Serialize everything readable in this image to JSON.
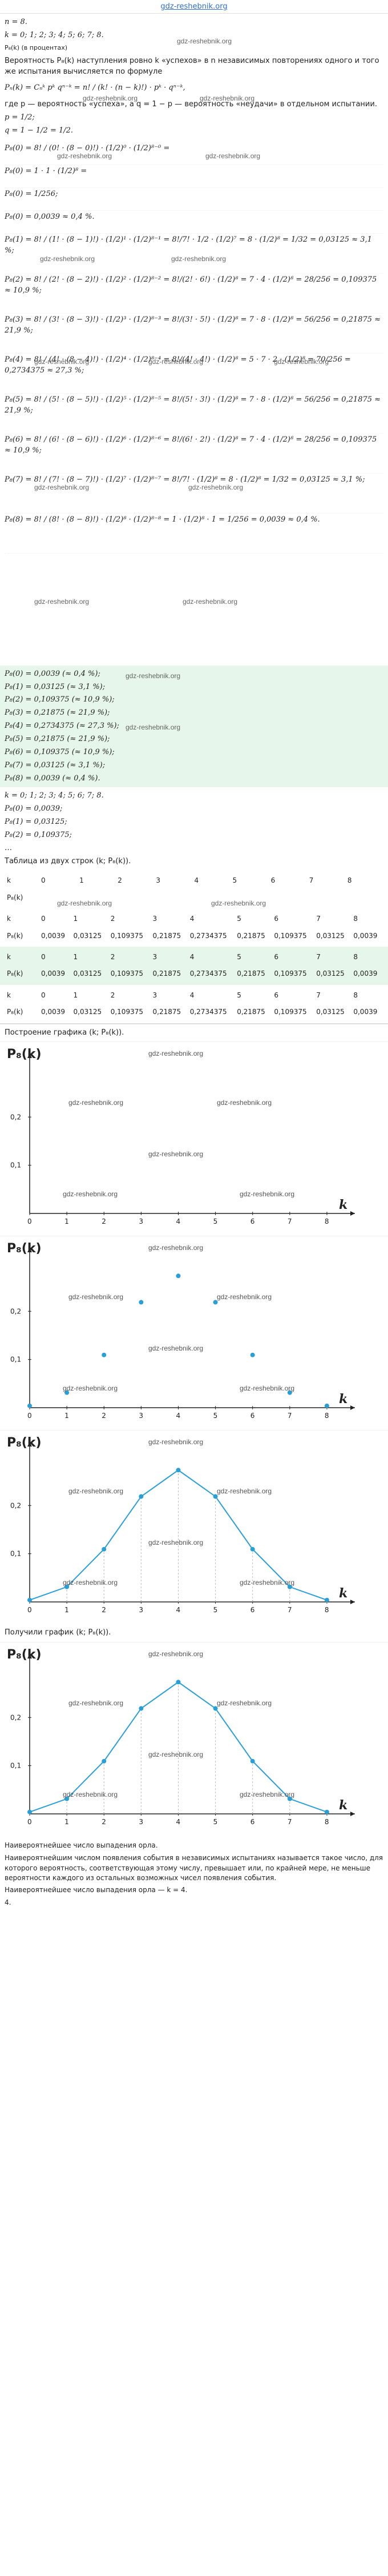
{
  "site": {
    "name": "gdz-reshebnik.org",
    "watermark": "gdz-reshebnik.org"
  },
  "intro": {
    "n_line": "n = 8.",
    "k_line": "k = 0; 1; 2; 3; 4; 5; 6; 7; 8.",
    "pk_caption": "P₈(k) (в процентах)",
    "prob_text": "Вероятность P₈(k) наступления ровно k «успехов» в n независимых повторениях одного и того же испытания вычисляется по формуле",
    "formula": "Pₙ(k) = Cₙᵏ pᵏ qⁿ⁻ᵏ = n! / (k! · (n − k)!) · pᵏ · qⁿ⁻ᵏ,",
    "where_text": "где p — вероятность «успеха», а q = 1 − p — вероятность «неудачи» в отдельном испытании.",
    "p_line": "p = 1/2;",
    "q_line": "q = 1 − 1/2 = 1/2."
  },
  "calcs": [
    "P₈(0) = 8! / (0! · (8 − 0)!) · (1/2)⁰ · (1/2)⁸⁻⁰ =",
    "P₈(0) = 1 · 1 · (1/2)⁸ =",
    "P₈(0) = 1/256;",
    "P₈(0) = 0,0039 ≈ 0,4 %.",
    "P₈(1) = 8! / (1! · (8 − 1)!) · (1/2)¹ · (1/2)⁸⁻¹ = 8!/7! · 1/2 · (1/2)⁷ = 8 · (1/2)⁸ = 1/32 = 0,03125 ≈ 3,1 %;",
    "P₈(2) = 8! / (2! · (8 − 2)!) · (1/2)² · (1/2)⁸⁻² = 8!/(2! · 6!) · (1/2)⁸ = 7 · 4 · (1/2)⁸ = 28/256 = 0,109375 ≈ 10,9 %;",
    "P₈(3) = 8! / (3! · (8 − 3)!) · (1/2)³ · (1/2)⁸⁻³ = 8!/(3! · 5!) · (1/2)⁸ = 7 · 8 · (1/2)⁸ = 56/256 = 0,21875 ≈ 21,9 %;",
    "P₈(4) = 8! / (4! · (8 − 4)!) · (1/2)⁴ · (1/2)⁸⁻⁴ = 8!/(4! · 4!) · (1/2)⁸ = 5 · 7 · 2 · (1/2)⁸ = 70/256 = 0,2734375 ≈ 27,3 %;",
    "P₈(5) = 8! / (5! · (8 − 5)!) · (1/2)⁵ · (1/2)⁸⁻⁵ = 8!/(5! · 3!) · (1/2)⁸ = 7 · 8 · (1/2)⁸ = 56/256 = 0,21875 ≈ 21,9 %;",
    "P₈(6) = 8! / (6! · (8 − 6)!) · (1/2)⁶ · (1/2)⁸⁻⁶ = 8!/(6! · 2!) · (1/2)⁸ = 7 · 4 · (1/2)⁸ = 28/256 = 0,109375 ≈ 10,9 %;",
    "P₈(7) = 8! / (7! · (8 − 7)!) · (1/2)⁷ · (1/2)⁸⁻⁷ = 8!/7! · (1/2)⁸ = 8 · (1/2)⁸ = 1/32 = 0,03125 ≈ 3,1 %;",
    "P₈(8) = 8! / (8! · (8 − 8)!) · (1/2)⁸ · (1/2)⁸⁻⁸ = 1 · (1/2)⁸ · 1 = 1/256 = 0,0039 ≈ 0,4 %."
  ],
  "results": [
    "P₈(0) = 0,0039 (≈ 0,4 %);",
    "P₈(1) = 0,03125 (≈ 3,1 %);",
    "P₈(2) = 0,109375 (≈ 10,9 %);",
    "P₈(3) = 0,21875 (≈ 21,9 %);",
    "P₈(4) = 0,2734375 (≈ 27,3 %);",
    "P₈(5) = 0,21875 (≈ 21,9 %);",
    "P₈(6) = 0,109375 (≈ 10,9 %);",
    "P₈(7) = 0,03125 (≈ 3,1 %);",
    "P₈(8) = 0,0039 (≈ 0,4 %)."
  ],
  "summary": {
    "k_line": "k = 0; 1; 2; 3; 4; 5; 6; 7; 8.",
    "lines": [
      "P₈(0) = 0,0039;",
      "P₈(1) = 0,03125;",
      "P₈(2) = 0,109375;",
      "…"
    ],
    "table_caption": "Таблица из двух строк (k; P₈(k)).",
    "graph_caption": "Построение графика (k; P₈(k)).",
    "got_graph": "Получили график (k; P₈(k))."
  },
  "table": {
    "row_labels": [
      "k",
      "P₈(k)"
    ],
    "k": [
      "0",
      "1",
      "2",
      "3",
      "4",
      "5",
      "6",
      "7",
      "8"
    ],
    "p": [
      "0,0039",
      "0,03125",
      "0,109375",
      "0,21875",
      "0,2734375",
      "0,21875",
      "0,109375",
      "0,03125",
      "0,0039"
    ]
  },
  "chart_data": [
    {
      "type": "scatter",
      "title": "",
      "ylabel": "P₈(k)",
      "xlabel": "k",
      "x_ticks": [
        "0",
        "1",
        "2",
        "3",
        "4",
        "5",
        "6",
        "7",
        "8"
      ],
      "y_ticks": [
        "0,1",
        "0,2"
      ],
      "xlim": [
        0,
        8.6
      ],
      "ylim": [
        0,
        0.32
      ],
      "x": [],
      "y": [],
      "point_color": "#2a9fd6",
      "grid": false
    },
    {
      "type": "scatter",
      "title": "",
      "ylabel": "P₈(k)",
      "xlabel": "k",
      "x_ticks": [
        "0",
        "1",
        "2",
        "3",
        "4",
        "5",
        "6",
        "7",
        "8"
      ],
      "y_ticks": [
        "0,1",
        "0,2"
      ],
      "xlim": [
        0,
        8.6
      ],
      "ylim": [
        0,
        0.32
      ],
      "x": [
        0,
        1,
        2,
        3,
        4,
        5,
        6,
        7,
        8
      ],
      "y": [
        0.0039,
        0.03125,
        0.109375,
        0.21875,
        0.2734375,
        0.21875,
        0.109375,
        0.03125,
        0.0039
      ],
      "point_color": "#2a9fd6",
      "grid": false
    },
    {
      "type": "line",
      "title": "",
      "ylabel": "P₈(k)",
      "xlabel": "k",
      "x_ticks": [
        "0",
        "1",
        "2",
        "3",
        "4",
        "5",
        "6",
        "7",
        "8"
      ],
      "y_ticks": [
        "0,1",
        "0,2"
      ],
      "xlim": [
        0,
        8.6
      ],
      "ylim": [
        0,
        0.32
      ],
      "x": [
        0,
        1,
        2,
        3,
        4,
        5,
        6,
        7,
        8
      ],
      "y": [
        0.0039,
        0.03125,
        0.109375,
        0.21875,
        0.2734375,
        0.21875,
        0.109375,
        0.03125,
        0.0039
      ],
      "point_color": "#2a9fd6",
      "grid": false
    },
    {
      "type": "line",
      "title": "",
      "ylabel": "P₈(k)",
      "xlabel": "k",
      "x_ticks": [
        "0",
        "1",
        "2",
        "3",
        "4",
        "5",
        "6",
        "7",
        "8"
      ],
      "y_ticks": [
        "0,1",
        "0,2"
      ],
      "xlim": [
        0,
        8.6
      ],
      "ylim": [
        0,
        0.32
      ],
      "x": [
        0,
        1,
        2,
        3,
        4,
        5,
        6,
        7,
        8
      ],
      "y": [
        0.0039,
        0.03125,
        0.109375,
        0.21875,
        0.2734375,
        0.21875,
        0.109375,
        0.03125,
        0.0039
      ],
      "point_color": "#2a9fd6",
      "grid": false
    }
  ],
  "conclusion": {
    "heading": "Наивероятнейшее число выпадения орла.",
    "definition": "Наивероятнейшим числом появления события в независимых испытаниях называется такое число, для которого вероятность, соответствующая этому числу, превышает или, по крайней мере, не меньше вероятности каждого из остальных возможных чисел появления события.",
    "answer_line": "Наивероятнейшее число выпадения орла — k = 4.",
    "answer_short": "4."
  }
}
